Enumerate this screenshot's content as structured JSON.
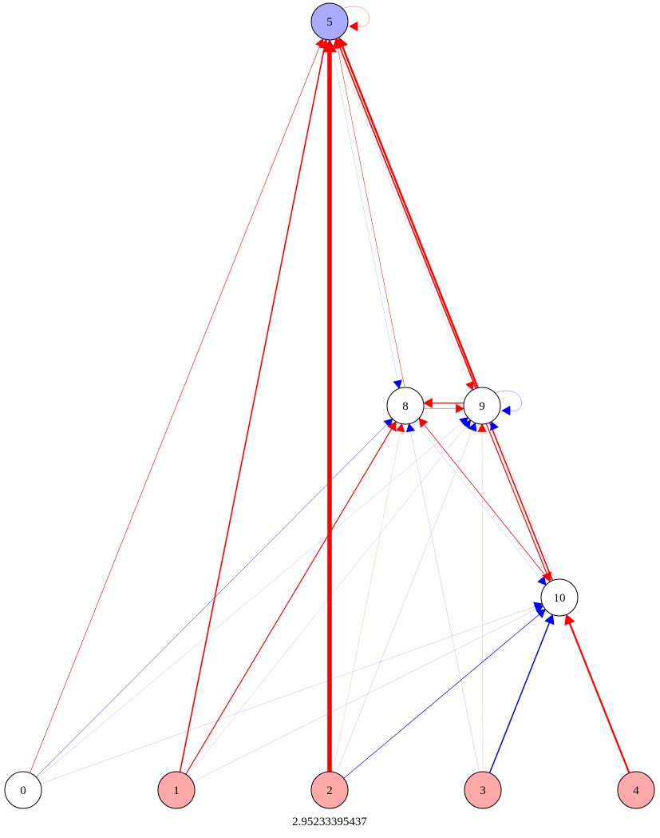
{
  "caption": "2.95233395437",
  "colors": {
    "excitatory": "#ff0000",
    "inhibitory": "#0000ff",
    "input_fill": "#ffaaaa",
    "output_fill": "#aaaaff",
    "hidden_fill": "#ffffff"
  },
  "nodes": [
    {
      "id": "0",
      "label": "0",
      "fill": "#ffffff"
    },
    {
      "id": "1",
      "label": "1",
      "fill": "#ffaaaa"
    },
    {
      "id": "2",
      "label": "2",
      "fill": "#ffaaaa"
    },
    {
      "id": "3",
      "label": "3",
      "fill": "#ffaaaa"
    },
    {
      "id": "4",
      "label": "4",
      "fill": "#ffaaaa"
    },
    {
      "id": "5",
      "label": "5",
      "fill": "#aaaaff"
    },
    {
      "id": "8",
      "label": "8",
      "fill": "#ffffff"
    },
    {
      "id": "9",
      "label": "9",
      "fill": "#ffffff"
    },
    {
      "id": "10",
      "label": "10",
      "fill": "#ffffff"
    }
  ],
  "edges": [
    {
      "from": "0",
      "to": "5",
      "color": "#ff0000",
      "weight": 0.6
    },
    {
      "from": "0",
      "to": "8",
      "color": "#0000ff",
      "weight": 0.5
    },
    {
      "from": "0",
      "to": "9",
      "color": "#0000ff",
      "weight": 0.2
    },
    {
      "from": "0",
      "to": "10",
      "color": "#0000ff",
      "weight": 0.15
    },
    {
      "from": "1",
      "to": "5",
      "color": "#ff0000",
      "weight": 1.6
    },
    {
      "from": "1",
      "to": "8",
      "color": "#ff0000",
      "weight": 1.2
    },
    {
      "from": "1",
      "to": "9",
      "color": "#0000ff",
      "weight": 0.15
    },
    {
      "from": "1",
      "to": "10",
      "color": "#0000ff",
      "weight": 0.3
    },
    {
      "from": "2",
      "to": "5",
      "color": "#ff0000",
      "weight": 5.5
    },
    {
      "from": "2",
      "to": "8",
      "color": "#ff0000",
      "weight": 0.3
    },
    {
      "from": "2",
      "to": "9",
      "color": "#0000ff",
      "weight": 0.3
    },
    {
      "from": "2",
      "to": "10",
      "color": "#0000ff",
      "weight": 0.7
    },
    {
      "from": "3",
      "to": "8",
      "color": "#0000ff",
      "weight": 0.3
    },
    {
      "from": "3",
      "to": "9",
      "color": "#ff0000",
      "weight": 0.3
    },
    {
      "from": "3",
      "to": "10",
      "color": "#0000ff",
      "weight": 1.5
    },
    {
      "from": "4",
      "to": "10",
      "color": "#ff0000",
      "weight": 2.2
    },
    {
      "from": "5",
      "to": "5",
      "color": "#ff0000",
      "weight": 0.3,
      "self": true
    },
    {
      "from": "5",
      "to": "8",
      "color": "#0000ff",
      "weight": 0.3
    },
    {
      "from": "5",
      "to": "9",
      "color": "#ff0000",
      "weight": 0.3
    },
    {
      "from": "8",
      "to": "5",
      "color": "#ff0000",
      "weight": 0.5
    },
    {
      "from": "8",
      "to": "9",
      "color": "#ff0000",
      "weight": 0.4
    },
    {
      "from": "8",
      "to": "10",
      "color": "#0000ff",
      "weight": 0.3
    },
    {
      "from": "9",
      "to": "5",
      "color": "#ff0000",
      "weight": 2.4
    },
    {
      "from": "9",
      "to": "8",
      "color": "#ff0000",
      "weight": 1.2
    },
    {
      "from": "9",
      "to": "9",
      "color": "#0000ff",
      "weight": 0.3,
      "self": true
    },
    {
      "from": "9",
      "to": "10",
      "color": "#ff0000",
      "weight": 1.2
    },
    {
      "from": "10",
      "to": "5",
      "color": "#ff0000",
      "weight": 1.6
    },
    {
      "from": "10",
      "to": "8",
      "color": "#ff0000",
      "weight": 0.8
    },
    {
      "from": "10",
      "to": "9",
      "color": "#0000ff",
      "weight": 0.3
    }
  ]
}
